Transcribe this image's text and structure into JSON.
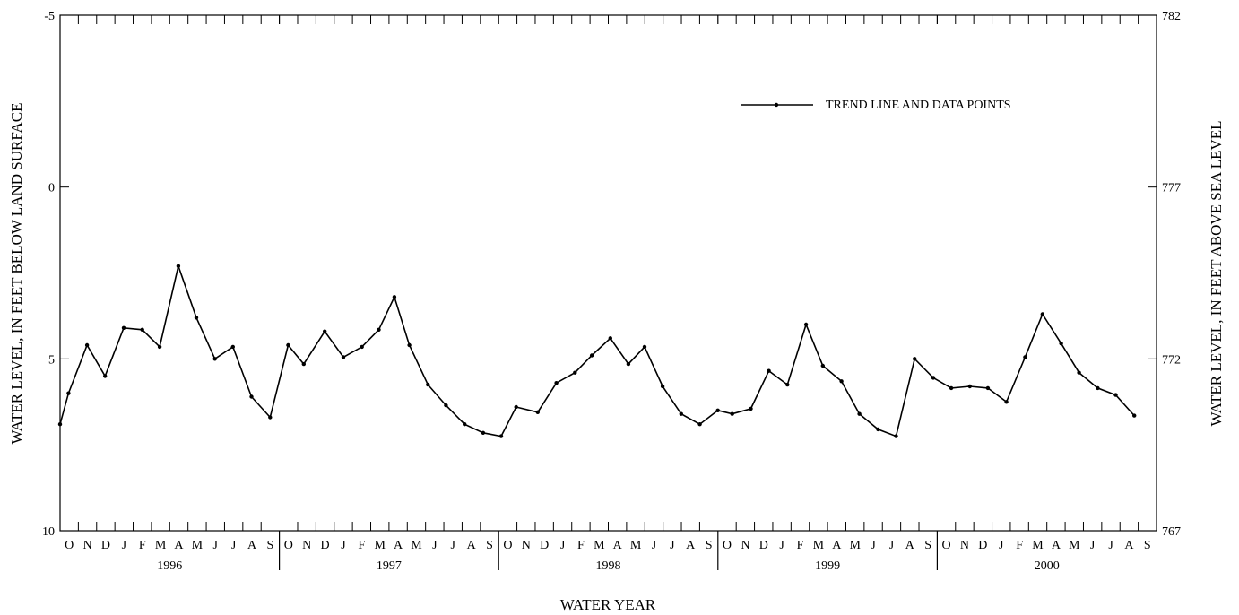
{
  "chart_data": {
    "type": "line",
    "xlabel": "WATER YEAR",
    "ylabel_left": "WATER LEVEL, IN FEET BELOW LAND SURFACE",
    "ylabel_right": "WATER LEVEL, IN FEET ABOVE SEA LEVEL",
    "y_left_inverted": true,
    "ylim_left": [
      -5,
      10
    ],
    "y_left_ticks": [
      "-5",
      "0",
      "5",
      "10"
    ],
    "ylim_right": [
      782,
      767
    ],
    "y_right_ticks": [
      "782",
      "777",
      "772",
      "767"
    ],
    "grid": false,
    "legend_position": "top-right",
    "water_years": [
      "1996",
      "1997",
      "1998",
      "1999",
      "2000"
    ],
    "month_labels": [
      "O",
      "N",
      "D",
      "J",
      "F",
      "M",
      "A",
      "M",
      "J",
      "J",
      "A",
      "S"
    ],
    "series": [
      {
        "name": "TREND LINE AND DATA POINTS",
        "color": "#000000",
        "points": [
          [
            "1995-10-01",
            6.9
          ],
          [
            "1995-10-15",
            6.0
          ],
          [
            "1995-11-15",
            4.6
          ],
          [
            "1995-12-15",
            5.5
          ],
          [
            "1996-01-15",
            4.1
          ],
          [
            "1996-02-15",
            4.15
          ],
          [
            "1996-03-15",
            4.65
          ],
          [
            "1996-04-15",
            2.3
          ],
          [
            "1996-05-15",
            3.8
          ],
          [
            "1996-06-15",
            5.0
          ],
          [
            "1996-07-15",
            4.65
          ],
          [
            "1996-08-15",
            6.1
          ],
          [
            "1996-09-15",
            6.7
          ],
          [
            "1996-10-15",
            4.6
          ],
          [
            "1996-11-10",
            5.15
          ],
          [
            "1996-12-15",
            4.2
          ],
          [
            "1997-01-15",
            4.95
          ],
          [
            "1997-02-15",
            4.65
          ],
          [
            "1997-03-15",
            4.15
          ],
          [
            "1997-04-10",
            3.2
          ],
          [
            "1997-05-05",
            4.6
          ],
          [
            "1997-06-05",
            5.75
          ],
          [
            "1997-07-05",
            6.35
          ],
          [
            "1997-08-05",
            6.9
          ],
          [
            "1997-09-05",
            7.15
          ],
          [
            "1997-10-05",
            7.25
          ],
          [
            "1997-10-30",
            6.4
          ],
          [
            "1997-12-05",
            6.55
          ],
          [
            "1998-01-05",
            5.7
          ],
          [
            "1998-02-05",
            5.4
          ],
          [
            "1998-03-05",
            4.9
          ],
          [
            "1998-04-05",
            4.4
          ],
          [
            "1998-05-05",
            5.15
          ],
          [
            "1998-06-01",
            4.65
          ],
          [
            "1998-07-01",
            5.8
          ],
          [
            "1998-08-01",
            6.6
          ],
          [
            "1998-09-01",
            6.9
          ],
          [
            "1998-10-01",
            6.5
          ],
          [
            "1998-10-25",
            6.6
          ],
          [
            "1998-11-25",
            6.45
          ],
          [
            "1998-12-25",
            5.35
          ],
          [
            "1999-01-25",
            5.75
          ],
          [
            "1999-02-25",
            4.0
          ],
          [
            "1999-03-25",
            5.2
          ],
          [
            "1999-04-25",
            5.65
          ],
          [
            "1999-05-25",
            6.6
          ],
          [
            "1999-06-25",
            7.05
          ],
          [
            "1999-07-25",
            7.25
          ],
          [
            "1999-08-25",
            5.0
          ],
          [
            "1999-09-25",
            5.55
          ],
          [
            "1999-10-25",
            5.85
          ],
          [
            "1999-11-25",
            5.8
          ],
          [
            "1999-12-25",
            5.85
          ],
          [
            "2000-01-25",
            6.25
          ],
          [
            "2000-02-25",
            4.95
          ],
          [
            "2000-03-25",
            3.7
          ],
          [
            "2000-04-25",
            4.55
          ],
          [
            "2000-05-25",
            5.4
          ],
          [
            "2000-06-25",
            5.85
          ],
          [
            "2000-07-25",
            6.05
          ],
          [
            "2000-08-25",
            6.65
          ]
        ]
      }
    ]
  }
}
